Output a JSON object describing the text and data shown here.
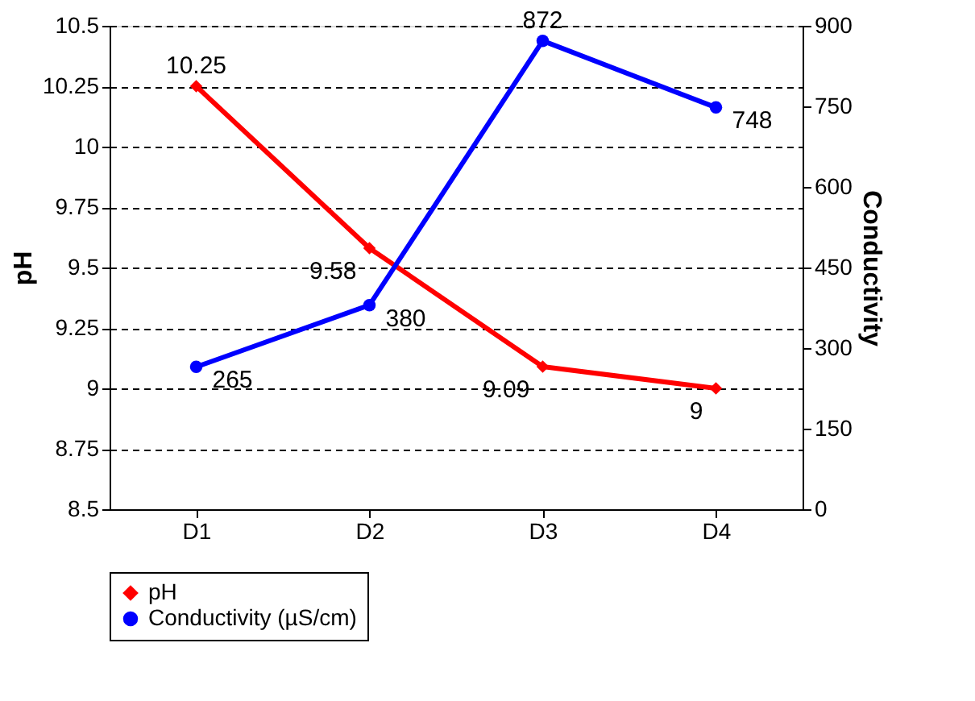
{
  "chart_data": {
    "type": "line",
    "categories": [
      "D1",
      "D2",
      "D3",
      "D4"
    ],
    "series": [
      {
        "name": "pH",
        "color": "#ff0000",
        "values": [
          10.25,
          9.58,
          9.09,
          9
        ],
        "marker": "diamond"
      },
      {
        "name": "Conductivity (µS/cm)",
        "color": "#0000ff",
        "values": [
          265,
          380,
          872,
          748
        ],
        "axis": "y2",
        "marker": "circle"
      }
    ],
    "ylabel": "pH",
    "y2label": "Conductivity",
    "ylim": [
      8.5,
      10.5
    ],
    "yticks": [
      8.5,
      8.75,
      9,
      9.25,
      9.5,
      9.75,
      10,
      10.25,
      10.5
    ],
    "y2lim": [
      0,
      900
    ],
    "y2ticks": [
      0,
      150,
      300,
      450,
      600,
      750,
      900
    ],
    "grid": "y",
    "legend": "bottom",
    "data_labels": true
  }
}
